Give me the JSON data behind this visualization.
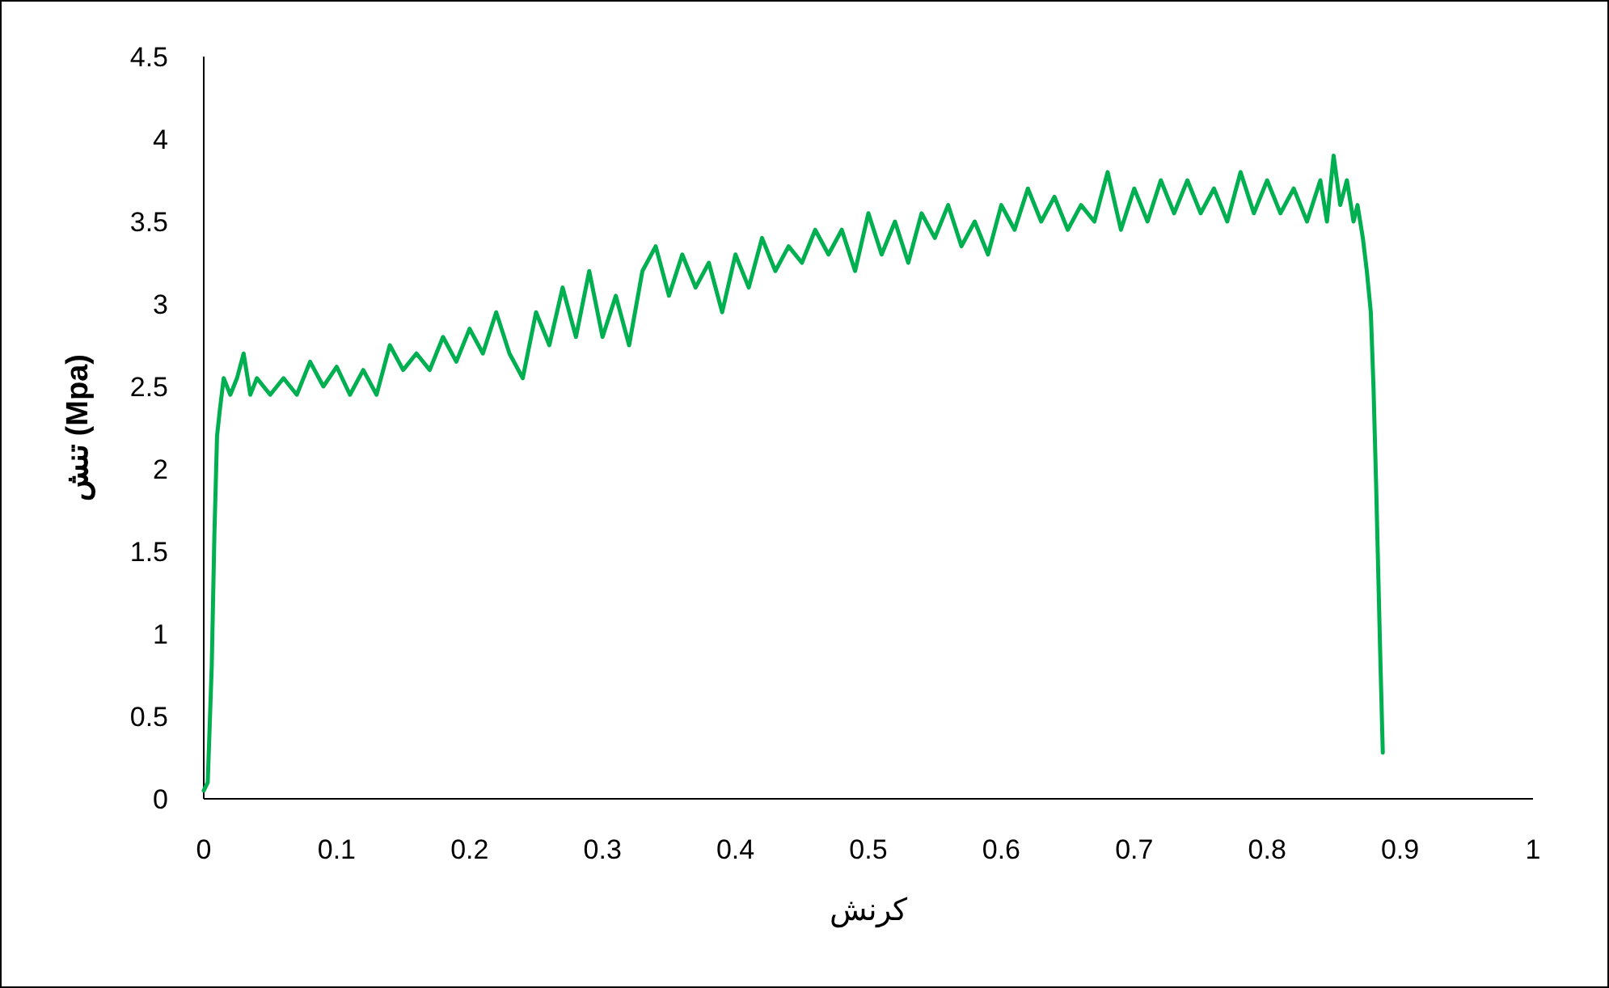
{
  "chart_data": {
    "type": "line",
    "xlabel": "کرنش",
    "ylabel": "تنش (Mpa)",
    "xlim": [
      0,
      1
    ],
    "ylim": [
      0,
      4.5
    ],
    "xticks": [
      0,
      0.1,
      0.2,
      0.3,
      0.4,
      0.5,
      0.6,
      0.7,
      0.8,
      0.9,
      1
    ],
    "yticks": [
      0,
      0.5,
      1,
      1.5,
      2,
      2.5,
      3,
      3.5,
      4,
      4.5
    ],
    "grid": false,
    "marker": "none",
    "line_style": "solid",
    "series": [
      {
        "color": "#00b050",
        "x": [
          0,
          0.003,
          0.006,
          0.008,
          0.01,
          0.012,
          0.015,
          0.02,
          0.025,
          0.03,
          0.035,
          0.04,
          0.05,
          0.06,
          0.07,
          0.08,
          0.09,
          0.1,
          0.11,
          0.12,
          0.13,
          0.14,
          0.15,
          0.16,
          0.17,
          0.18,
          0.19,
          0.2,
          0.21,
          0.22,
          0.23,
          0.24,
          0.25,
          0.26,
          0.27,
          0.28,
          0.29,
          0.3,
          0.31,
          0.32,
          0.33,
          0.34,
          0.35,
          0.36,
          0.37,
          0.38,
          0.39,
          0.4,
          0.41,
          0.42,
          0.43,
          0.44,
          0.45,
          0.46,
          0.47,
          0.48,
          0.49,
          0.5,
          0.51,
          0.52,
          0.53,
          0.54,
          0.55,
          0.56,
          0.57,
          0.58,
          0.59,
          0.6,
          0.61,
          0.62,
          0.63,
          0.64,
          0.65,
          0.66,
          0.67,
          0.68,
          0.69,
          0.7,
          0.71,
          0.72,
          0.73,
          0.74,
          0.75,
          0.76,
          0.77,
          0.78,
          0.79,
          0.8,
          0.81,
          0.82,
          0.83,
          0.84,
          0.845,
          0.85,
          0.855,
          0.86,
          0.865,
          0.868,
          0.872,
          0.875,
          0.878,
          0.88,
          0.882,
          0.885,
          0.887
        ],
        "values": [
          0.05,
          0.1,
          0.8,
          1.6,
          2.2,
          2.35,
          2.55,
          2.45,
          2.55,
          2.7,
          2.45,
          2.55,
          2.45,
          2.55,
          2.45,
          2.65,
          2.5,
          2.62,
          2.45,
          2.6,
          2.45,
          2.75,
          2.6,
          2.7,
          2.6,
          2.8,
          2.65,
          2.85,
          2.7,
          2.95,
          2.7,
          2.55,
          2.95,
          2.75,
          3.1,
          2.8,
          3.2,
          2.8,
          3.05,
          2.75,
          3.2,
          3.35,
          3.05,
          3.3,
          3.1,
          3.25,
          2.95,
          3.3,
          3.1,
          3.4,
          3.2,
          3.35,
          3.25,
          3.45,
          3.3,
          3.45,
          3.2,
          3.55,
          3.3,
          3.5,
          3.25,
          3.55,
          3.4,
          3.6,
          3.35,
          3.5,
          3.3,
          3.6,
          3.45,
          3.7,
          3.5,
          3.65,
          3.45,
          3.6,
          3.5,
          3.8,
          3.45,
          3.7,
          3.5,
          3.75,
          3.55,
          3.75,
          3.55,
          3.7,
          3.5,
          3.8,
          3.55,
          3.75,
          3.55,
          3.7,
          3.5,
          3.75,
          3.5,
          3.9,
          3.6,
          3.75,
          3.5,
          3.6,
          3.4,
          3.2,
          2.95,
          2.5,
          1.9,
          0.9,
          0.28
        ]
      }
    ]
  }
}
